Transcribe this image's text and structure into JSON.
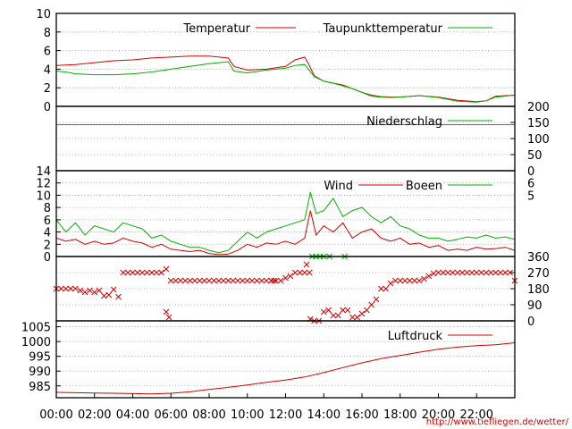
{
  "footer_url": "http://www.tiefliegen.de/wetter/",
  "x_ticks": [
    "00:00",
    "02:00",
    "04:00",
    "06:00",
    "08:00",
    "10:00",
    "12:00",
    "14:00",
    "16:00",
    "18:00",
    "20:00",
    "22:00"
  ],
  "colors": {
    "red": "#d40000",
    "green": "#00b000",
    "grid": "#999999"
  },
  "chart_data": [
    {
      "type": "line",
      "ylim": [
        0,
        10
      ],
      "y_ticks": [
        0,
        2,
        4,
        6,
        8,
        10
      ],
      "grid": true,
      "legend": "top-right",
      "series": [
        {
          "name": "Temperatur",
          "color": "#d40000",
          "x": [
            0,
            1,
            2,
            3,
            4,
            5,
            6,
            7,
            8,
            9,
            9.3,
            10,
            11,
            12,
            12.5,
            13,
            13.2,
            13.5,
            14,
            14.5,
            15,
            15.5,
            16,
            16.5,
            17,
            17.5,
            18,
            19,
            20,
            21,
            22,
            22.5,
            23,
            24
          ],
          "y": [
            4.4,
            4.5,
            4.7,
            4.9,
            5.0,
            5.2,
            5.3,
            5.4,
            5.4,
            5.2,
            4.3,
            3.9,
            4.0,
            4.3,
            5.0,
            5.3,
            4.6,
            3.3,
            2.7,
            2.5,
            2.3,
            1.9,
            1.5,
            1.2,
            1.05,
            1.0,
            1.0,
            1.15,
            1.0,
            0.65,
            0.5,
            0.6,
            1.1,
            1.2
          ]
        },
        {
          "name": "Taupunkttemperatur",
          "color": "#00b000",
          "x": [
            0,
            0.5,
            1,
            2,
            3,
            4,
            5,
            6,
            7,
            8,
            9,
            9.3,
            10,
            11,
            12,
            12.5,
            13,
            13.2,
            13.5,
            14,
            14.5,
            15,
            15.5,
            16,
            16.5,
            17,
            17.5,
            18,
            19,
            20,
            21,
            22,
            22.5,
            23,
            24
          ],
          "y": [
            3.8,
            3.7,
            3.5,
            3.4,
            3.4,
            3.5,
            3.7,
            4.0,
            4.3,
            4.6,
            4.8,
            3.8,
            3.6,
            3.9,
            4.1,
            4.4,
            4.5,
            4.0,
            3.2,
            2.7,
            2.5,
            2.2,
            1.9,
            1.5,
            1.1,
            1.0,
            0.95,
            1.0,
            1.15,
            0.95,
            0.55,
            0.45,
            0.6,
            1.0,
            1.2
          ]
        }
      ]
    },
    {
      "type": "line",
      "y2lim": [
        0,
        200
      ],
      "y2_ticks": [
        0,
        50,
        100,
        150,
        200
      ],
      "grid": true,
      "series": [
        {
          "name": "Niederschlag",
          "color": "#00b000",
          "x": [
            0,
            24
          ],
          "y": [
            143,
            143
          ]
        }
      ]
    },
    {
      "type": "line",
      "ylim": [
        0,
        14
      ],
      "y_ticks": [
        0,
        2,
        4,
        6,
        8,
        10,
        12,
        14
      ],
      "y2_labels": [
        {
          "value": 5,
          "label": "5"
        },
        {
          "value": 6,
          "label": "6"
        }
      ],
      "grid": true,
      "series": [
        {
          "name": "Wind",
          "color": "#d40000",
          "x": [
            0,
            0.5,
            1,
            1.5,
            2,
            2.5,
            3,
            3.5,
            4,
            4.5,
            5,
            5.5,
            6,
            6.5,
            7,
            7.5,
            8,
            8.5,
            9,
            9.5,
            10,
            10.5,
            11,
            11.5,
            12,
            12.5,
            13,
            13.3,
            13.6,
            14,
            14.5,
            15,
            15.5,
            16,
            16.5,
            17,
            17.5,
            18,
            18.5,
            19,
            19.5,
            20,
            20.5,
            21,
            21.5,
            22,
            22.5,
            23,
            23.5,
            24
          ],
          "y": [
            3,
            2.5,
            2.8,
            2,
            2.5,
            2,
            2.2,
            3,
            2.5,
            2.2,
            1.5,
            2,
            1.2,
            1,
            0.8,
            1,
            0.5,
            0.3,
            0.4,
            1,
            2,
            1.5,
            2.2,
            2,
            2.5,
            2,
            3,
            7.5,
            3.5,
            5,
            4,
            5.5,
            3,
            4,
            4.5,
            3,
            2.5,
            3,
            2,
            2.2,
            1.5,
            1.8,
            1,
            1.2,
            1,
            1.5,
            1.2,
            1.3,
            1.5,
            1
          ]
        },
        {
          "name": "Boeen",
          "color": "#00b000",
          "x": [
            0,
            0.5,
            1,
            1.5,
            2,
            2.5,
            3,
            3.5,
            4,
            4.5,
            5,
            5.5,
            6,
            6.5,
            7,
            7.5,
            8,
            8.5,
            9,
            9.5,
            10,
            10.5,
            11,
            11.5,
            12,
            12.5,
            13,
            13.3,
            13.6,
            14,
            14.5,
            15,
            15.5,
            16,
            16.5,
            17,
            17.5,
            18,
            18.5,
            19,
            19.5,
            20,
            20.5,
            21,
            21.5,
            22,
            22.5,
            23,
            23.5,
            24
          ],
          "y": [
            6,
            4,
            5.5,
            3.5,
            5,
            4.5,
            4,
            5.5,
            5,
            4.5,
            3,
            3.5,
            2.5,
            2,
            1.5,
            1.5,
            1,
            0.6,
            1,
            2.5,
            4,
            3,
            4,
            4.5,
            5,
            5.5,
            6,
            10.5,
            7,
            7.5,
            9.5,
            6.5,
            7.5,
            8,
            6.5,
            5.5,
            6.5,
            5,
            4.5,
            3.5,
            3,
            3,
            2.5,
            2.8,
            3.2,
            3,
            3.5,
            3,
            3.2,
            2.8
          ]
        }
      ]
    },
    {
      "type": "scatter",
      "y2lim": [
        0,
        360
      ],
      "y2_ticks": [
        0,
        90,
        180,
        270,
        360
      ],
      "grid": true,
      "series": [
        {
          "name": "",
          "color": "#d40000",
          "marker": "x",
          "x": [
            0,
            0.25,
            0.5,
            0.75,
            1,
            1.25,
            1.5,
            1.75,
            2,
            2.25,
            2.5,
            2.75,
            3,
            3.25,
            3.5,
            3.75,
            4,
            4.25,
            4.5,
            4.75,
            5,
            5.25,
            5.5,
            5.75,
            6,
            6.25,
            6.5,
            6.75,
            7,
            7.25,
            7.5,
            7.75,
            8,
            8.25,
            8.5,
            8.75,
            9,
            9.25,
            9.5,
            9.75,
            10,
            10.25,
            10.5,
            10.75,
            11,
            11.25,
            11.5,
            11.75,
            12,
            12.25,
            12.5,
            12.75,
            13,
            13.25,
            13.5,
            13.75,
            14,
            14.25,
            14.5,
            14.75,
            15,
            15.25,
            15.5,
            15.75,
            16,
            16.25,
            16.5,
            16.75,
            17,
            17.25,
            17.5,
            17.75,
            18,
            18.25,
            18.5,
            18.75,
            19,
            19.25,
            19.5,
            19.75,
            20,
            20.25,
            20.5,
            20.75,
            21,
            21.25,
            21.5,
            21.75,
            22,
            22.25,
            22.5,
            22.75,
            23,
            23.25,
            23.5,
            23.75,
            24,
            5.75,
            5.9,
            11.25,
            11.4,
            13.1,
            13.3
          ],
          "y": [
            180,
            180,
            180,
            180,
            180,
            170,
            160,
            170,
            160,
            170,
            140,
            145,
            175,
            135,
            270,
            270,
            270,
            270,
            270,
            270,
            270,
            270,
            270,
            290,
            225,
            225,
            225,
            225,
            225,
            225,
            225,
            225,
            225,
            225,
            225,
            225,
            225,
            225,
            225,
            225,
            225,
            225,
            225,
            225,
            225,
            225,
            225,
            225,
            240,
            250,
            270,
            270,
            270,
            270,
            0,
            0,
            50,
            60,
            30,
            30,
            60,
            60,
            20,
            20,
            40,
            60,
            90,
            120,
            180,
            180,
            210,
            225,
            225,
            225,
            225,
            225,
            225,
            235,
            250,
            265,
            270,
            270,
            270,
            270,
            270,
            270,
            270,
            270,
            270,
            270,
            270,
            270,
            270,
            270,
            270,
            270,
            225,
            50,
            20,
            225,
            225,
            315,
            10
          ]
        },
        {
          "name": "",
          "color": "#00b000",
          "marker": "x",
          "x": [
            13.4,
            13.6,
            13.8,
            14.0,
            14.3,
            15.1
          ],
          "y": [
            360,
            360,
            360,
            360,
            360,
            360
          ]
        }
      ]
    },
    {
      "type": "line",
      "ylim": [
        981,
        1007
      ],
      "y_ticks": [
        985,
        990,
        995,
        1000,
        1005
      ],
      "grid": true,
      "legend": "top-right",
      "series": [
        {
          "name": "Luftdruck",
          "color": "#d40000",
          "x": [
            0,
            1,
            2,
            3,
            4,
            5,
            6,
            7,
            8,
            9,
            10,
            11,
            12,
            13,
            14,
            15,
            16,
            17,
            18,
            19,
            20,
            21,
            22,
            23,
            24
          ],
          "y": [
            982.8,
            982.7,
            982.6,
            982.5,
            982.4,
            982.3,
            982.5,
            983,
            983.8,
            984.5,
            985.3,
            986.2,
            987,
            988,
            989.5,
            991.2,
            992.8,
            994.2,
            995.3,
            996.4,
            997.4,
            998.1,
            998.6,
            998.9,
            999.6
          ]
        }
      ]
    }
  ]
}
